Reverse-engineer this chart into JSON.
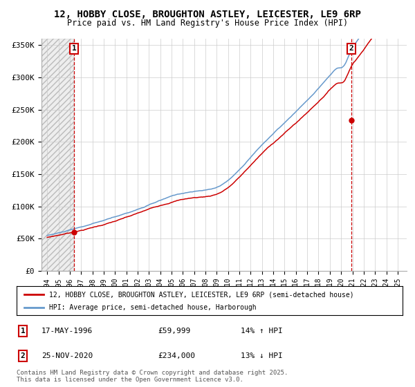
{
  "title": "12, HOBBY CLOSE, BROUGHTON ASTLEY, LEICESTER, LE9 6RP",
  "subtitle": "Price paid vs. HM Land Registry's House Price Index (HPI)",
  "legend_line1": "12, HOBBY CLOSE, BROUGHTON ASTLEY, LEICESTER, LE9 6RP (semi-detached house)",
  "legend_line2": "HPI: Average price, semi-detached house, Harborough",
  "sale1_date": "17-MAY-1996",
  "sale1_price": 59999,
  "sale1_label": "14% ↑ HPI",
  "sale1_year": 1996.38,
  "sale2_date": "25-NOV-2020",
  "sale2_price": 234000,
  "sale2_label": "13% ↓ HPI",
  "sale2_year": 2020.9,
  "ylim": [
    0,
    360000
  ],
  "xlim": [
    1993.5,
    2025.8
  ],
  "yticks": [
    0,
    50000,
    100000,
    150000,
    200000,
    250000,
    300000,
    350000
  ],
  "ytick_labels": [
    "£0",
    "£50K",
    "£100K",
    "£150K",
    "£200K",
    "£250K",
    "£300K",
    "£350K"
  ],
  "xticks": [
    1994,
    1995,
    1996,
    1997,
    1998,
    1999,
    2000,
    2001,
    2002,
    2003,
    2004,
    2005,
    2006,
    2007,
    2008,
    2009,
    2010,
    2011,
    2012,
    2013,
    2014,
    2015,
    2016,
    2017,
    2018,
    2019,
    2020,
    2021,
    2022,
    2023,
    2024,
    2025
  ],
  "red_color": "#cc0000",
  "blue_color": "#6699cc",
  "footnote": "Contains HM Land Registry data © Crown copyright and database right 2025.\nThis data is licensed under the Open Government Licence v3.0.",
  "background_color": "#ffffff",
  "hatch_region_end": 1996.38
}
